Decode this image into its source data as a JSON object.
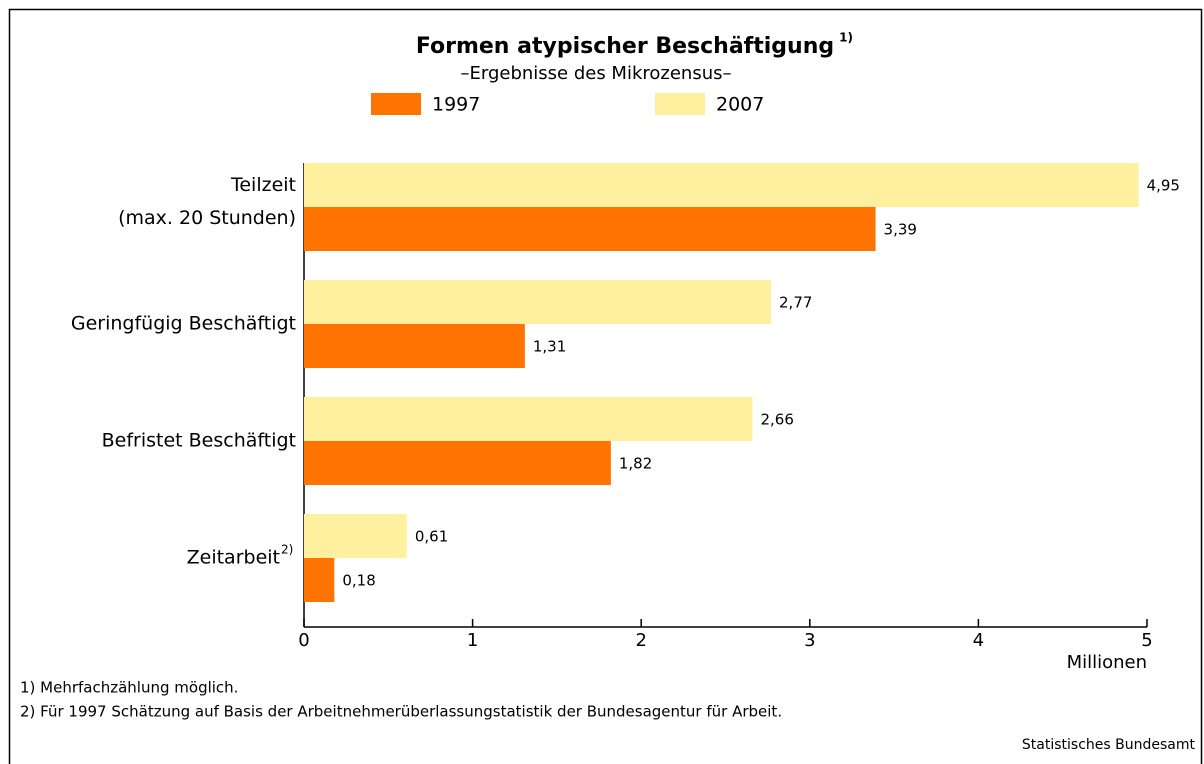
{
  "chart_data": {
    "type": "hbar",
    "title": "Formen atypischer Beschäftigung",
    "title_footnote_mark": "1)",
    "subtitle": "–Ergebnisse des Mikrozensus–",
    "categories": [
      "Teilzeit (max. 20 Stunden)",
      "Geringfügig Beschäftigt",
      "Befristet Beschäftigt",
      "Zeitarbeit"
    ],
    "category_footnote_marks": [
      null,
      null,
      null,
      "2)"
    ],
    "series": [
      {
        "name": "2007",
        "color": "#fff0a0",
        "values": [
          4.95,
          2.77,
          2.66,
          0.61
        ],
        "value_labels": [
          "4,95",
          "2,77",
          "2,66",
          "0,61"
        ]
      },
      {
        "name": "1997",
        "color": "#ff7300",
        "values": [
          3.39,
          1.31,
          1.82,
          0.18
        ],
        "value_labels": [
          "3,39",
          "1,31",
          "1,82",
          "0,18"
        ]
      }
    ],
    "legend_order": [
      1,
      0
    ],
    "xlim": [
      0,
      5
    ],
    "xticks": [
      0,
      1,
      2,
      3,
      4,
      5
    ],
    "x_label": "Millionen",
    "footnotes": [
      "1) Mehrfachzählung möglich.",
      "2) Für 1997 Schätzung auf Basis der Arbeitnehmerüberlassungstatistik der Bundesagentur für Arbeit."
    ],
    "source": "Statistisches Bundesamt"
  }
}
